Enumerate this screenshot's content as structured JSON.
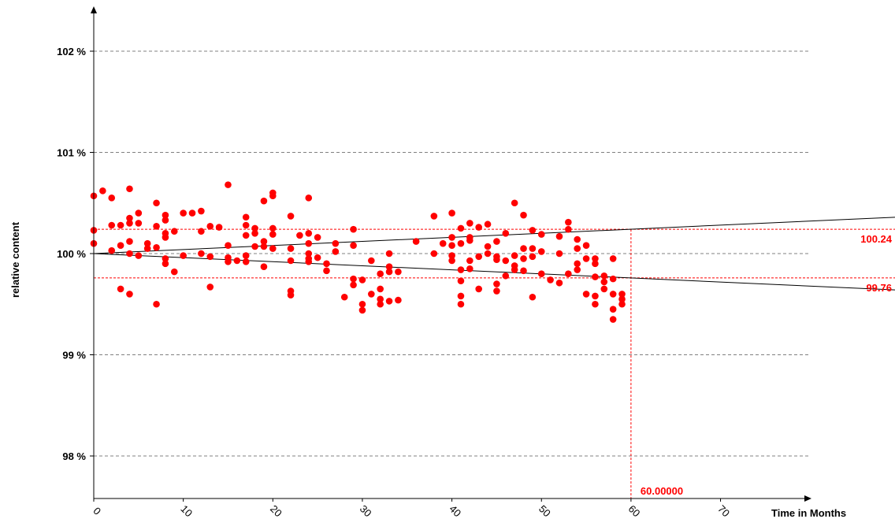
{
  "chart_data": {
    "type": "scatter",
    "title": "",
    "xlabel": "Time in  Months",
    "ylabel": "relative content",
    "xlim": [
      0,
      80
    ],
    "ylim": [
      97.6,
      102.9
    ],
    "x_ticks": [
      0,
      10,
      20,
      30,
      40,
      50,
      60,
      70
    ],
    "y_ticks": [
      98,
      99,
      100,
      101,
      102
    ],
    "y_tick_labels": [
      "98 %",
      "99 %",
      "100 %",
      "101 %",
      "102 %"
    ],
    "grid": "horizontal dashed",
    "colors": {
      "points": "#ff0000",
      "lines": "#000000",
      "grid": "#808080",
      "limits": "#ff0000"
    },
    "series": [
      {
        "values": [
          [
            0,
            100.57
          ],
          [
            0,
            100.23
          ],
          [
            0,
            100.1
          ],
          [
            1,
            100.62
          ],
          [
            2,
            100.55
          ],
          [
            2,
            100.28
          ],
          [
            2,
            100.03
          ],
          [
            3,
            100.28
          ],
          [
            3,
            100.08
          ],
          [
            3,
            99.65
          ],
          [
            4,
            100.64
          ],
          [
            4,
            100.35
          ],
          [
            4,
            100.3
          ],
          [
            4,
            100.12
          ],
          [
            4,
            100.0
          ],
          [
            4,
            99.6
          ],
          [
            5,
            100.4
          ],
          [
            5,
            100.3
          ],
          [
            5,
            99.98
          ],
          [
            6,
            100.1
          ],
          [
            6,
            100.05
          ],
          [
            7,
            100.5
          ],
          [
            7,
            100.27
          ],
          [
            7,
            100.06
          ],
          [
            7,
            99.5
          ],
          [
            8,
            100.38
          ],
          [
            8,
            100.33
          ],
          [
            8,
            100.2
          ],
          [
            8,
            100.16
          ],
          [
            8,
            99.95
          ],
          [
            8,
            99.9
          ],
          [
            9,
            100.22
          ],
          [
            9,
            99.82
          ],
          [
            10,
            100.4
          ],
          [
            10,
            99.98
          ],
          [
            11,
            100.4
          ],
          [
            12,
            100.42
          ],
          [
            12,
            100.22
          ],
          [
            12,
            100.0
          ],
          [
            13,
            100.27
          ],
          [
            13,
            99.97
          ],
          [
            13,
            99.67
          ],
          [
            14,
            100.26
          ],
          [
            15,
            100.68
          ],
          [
            15,
            100.08
          ],
          [
            15,
            99.96
          ],
          [
            15,
            99.92
          ],
          [
            16,
            99.93
          ],
          [
            17,
            100.36
          ],
          [
            17,
            100.28
          ],
          [
            17,
            100.18
          ],
          [
            17,
            99.98
          ],
          [
            17,
            99.92
          ],
          [
            18,
            100.25
          ],
          [
            18,
            100.2
          ],
          [
            18,
            100.07
          ],
          [
            19,
            100.52
          ],
          [
            19,
            100.12
          ],
          [
            19,
            100.07
          ],
          [
            19,
            99.87
          ],
          [
            20,
            100.6
          ],
          [
            20,
            100.57
          ],
          [
            20,
            100.25
          ],
          [
            20,
            100.19
          ],
          [
            20,
            100.05
          ],
          [
            22,
            100.37
          ],
          [
            22,
            100.05
          ],
          [
            22,
            99.93
          ],
          [
            22,
            99.63
          ],
          [
            22,
            99.59
          ],
          [
            23,
            100.18
          ],
          [
            24,
            100.55
          ],
          [
            24,
            100.2
          ],
          [
            24,
            100.1
          ],
          [
            24,
            100.0
          ],
          [
            24,
            99.95
          ],
          [
            24,
            99.92
          ],
          [
            25,
            100.16
          ],
          [
            25,
            99.96
          ],
          [
            26,
            99.9
          ],
          [
            26,
            99.83
          ],
          [
            27,
            100.1
          ],
          [
            27,
            100.02
          ],
          [
            28,
            99.57
          ],
          [
            29,
            100.24
          ],
          [
            29,
            100.08
          ],
          [
            29,
            99.75
          ],
          [
            29,
            99.69
          ],
          [
            30,
            99.74
          ],
          [
            30,
            99.5
          ],
          [
            30,
            99.44
          ],
          [
            31,
            99.93
          ],
          [
            31,
            99.6
          ],
          [
            32,
            99.8
          ],
          [
            32,
            99.65
          ],
          [
            32,
            99.55
          ],
          [
            32,
            99.5
          ],
          [
            33,
            100.0
          ],
          [
            33,
            99.87
          ],
          [
            33,
            99.82
          ],
          [
            33,
            99.53
          ],
          [
            34,
            99.82
          ],
          [
            34,
            99.54
          ],
          [
            36,
            100.12
          ],
          [
            38,
            100.37
          ],
          [
            38,
            100.0
          ],
          [
            39,
            100.1
          ],
          [
            40,
            100.4
          ],
          [
            40,
            100.16
          ],
          [
            40,
            100.08
          ],
          [
            40,
            99.98
          ],
          [
            40,
            99.93
          ],
          [
            41,
            100.25
          ],
          [
            41,
            100.1
          ],
          [
            41,
            99.84
          ],
          [
            41,
            99.73
          ],
          [
            41,
            99.58
          ],
          [
            41,
            99.5
          ],
          [
            42,
            100.3
          ],
          [
            42,
            100.16
          ],
          [
            42,
            100.13
          ],
          [
            42,
            99.93
          ],
          [
            42,
            99.85
          ],
          [
            43,
            100.26
          ],
          [
            43,
            99.97
          ],
          [
            43,
            99.65
          ],
          [
            44,
            100.29
          ],
          [
            44,
            100.07
          ],
          [
            44,
            100.0
          ],
          [
            45,
            100.12
          ],
          [
            45,
            99.97
          ],
          [
            45,
            99.94
          ],
          [
            45,
            99.7
          ],
          [
            45,
            99.63
          ],
          [
            46,
            100.2
          ],
          [
            46,
            99.93
          ],
          [
            46,
            99.78
          ],
          [
            47,
            100.5
          ],
          [
            47,
            99.98
          ],
          [
            47,
            99.88
          ],
          [
            47,
            99.84
          ],
          [
            48,
            100.38
          ],
          [
            48,
            100.05
          ],
          [
            48,
            99.95
          ],
          [
            48,
            99.83
          ],
          [
            49,
            100.23
          ],
          [
            49,
            100.05
          ],
          [
            49,
            99.97
          ],
          [
            49,
            99.57
          ],
          [
            50,
            100.19
          ],
          [
            50,
            100.02
          ],
          [
            50,
            99.8
          ],
          [
            51,
            99.74
          ],
          [
            52,
            100.17
          ],
          [
            52,
            100.0
          ],
          [
            52,
            99.71
          ],
          [
            53,
            100.31
          ],
          [
            53,
            100.24
          ],
          [
            53,
            99.8
          ],
          [
            54,
            100.14
          ],
          [
            54,
            100.05
          ],
          [
            54,
            99.9
          ],
          [
            54,
            99.84
          ],
          [
            55,
            100.08
          ],
          [
            55,
            99.95
          ],
          [
            55,
            99.6
          ],
          [
            56,
            99.95
          ],
          [
            56,
            99.9
          ],
          [
            56,
            99.77
          ],
          [
            56,
            99.58
          ],
          [
            56,
            99.5
          ],
          [
            57,
            99.78
          ],
          [
            57,
            99.72
          ],
          [
            57,
            99.65
          ],
          [
            58,
            99.95
          ],
          [
            58,
            99.75
          ],
          [
            58,
            99.6
          ],
          [
            58,
            99.45
          ],
          [
            58,
            99.35
          ],
          [
            59,
            99.6
          ],
          [
            59,
            99.55
          ],
          [
            59,
            99.5
          ]
        ]
      }
    ],
    "regression_lines": [
      {
        "x": [
          0,
          89.7
        ],
        "y": [
          100.0,
          100.36
        ]
      },
      {
        "x": [
          0,
          89.7
        ],
        "y": [
          100.0,
          99.64
        ]
      }
    ],
    "limit_lines": [
      {
        "y": 100.24,
        "label": "100.24"
      },
      {
        "y": 99.76,
        "label": "99.76"
      }
    ],
    "marker_line": {
      "x": 60,
      "label": "60.00000"
    }
  }
}
